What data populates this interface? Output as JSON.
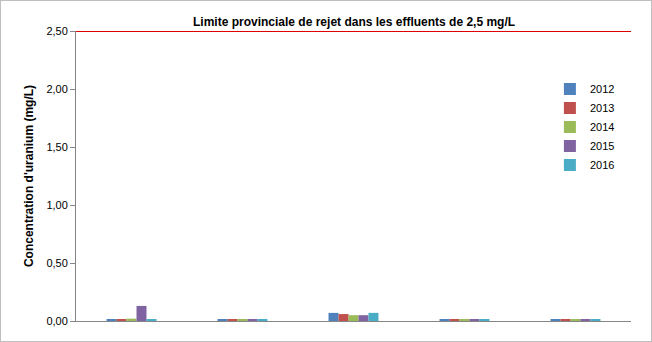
{
  "chart_data": {
    "type": "bar",
    "categories": [
      null,
      null,
      null,
      null,
      null
    ],
    "series": [
      {
        "name": "2012",
        "color": "#4f81bd",
        "values": [
          0.01,
          0.01,
          0.07,
          0.01,
          0.01
        ]
      },
      {
        "name": "2013",
        "color": "#c0504d",
        "values": [
          0.01,
          0.01,
          0.06,
          0.01,
          0.01
        ]
      },
      {
        "name": "2014",
        "color": "#9bbb59",
        "values": [
          0.02,
          0.01,
          0.05,
          0.01,
          0.01
        ]
      },
      {
        "name": "2015",
        "color": "#8064a2",
        "values": [
          0.13,
          0.01,
          0.05,
          0.01,
          0.01
        ]
      },
      {
        "name": "2016",
        "color": "#4bacc6",
        "values": [
          0.01,
          0.01,
          0.07,
          0.01,
          0.01
        ]
      }
    ],
    "y_label": "Concentration d'uranium (mg/L)",
    "reference_line": {
      "value": 2.5,
      "label": "Limite provinciale de rejet dans les effluents de 2,5 mg/L",
      "color": "#e00000"
    },
    "ylim": [
      0,
      2.5
    ],
    "yticks": [
      {
        "value": 0,
        "label": "0,00"
      },
      {
        "value": 0.5,
        "label": "0,50"
      },
      {
        "value": 1,
        "label": "1,00"
      },
      {
        "value": 1.5,
        "label": "1,50"
      },
      {
        "value": 2,
        "label": "2,00"
      },
      {
        "value": 2.5,
        "label": "2,50"
      }
    ],
    "grid": false,
    "legend": "upper right",
    "tick_labels": "y"
  }
}
